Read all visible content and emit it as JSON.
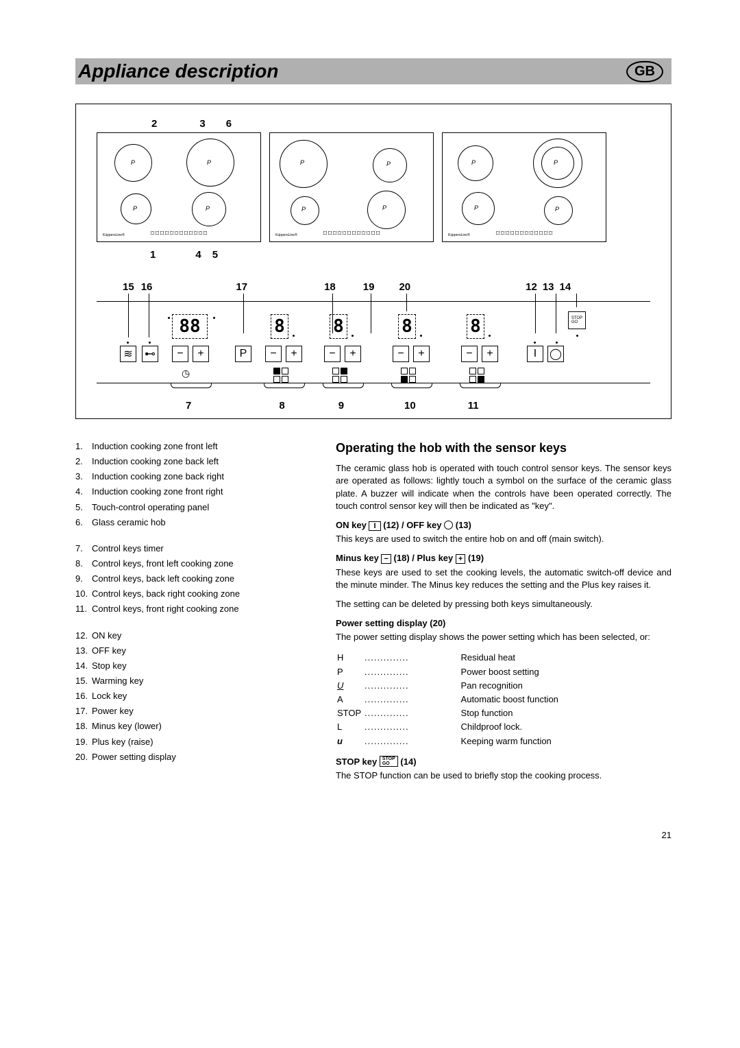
{
  "header": {
    "title": "Appliance description",
    "badge": "GB"
  },
  "top_diagram": {
    "top_labels": [
      "2",
      "3",
      "6"
    ],
    "mid_labels": [
      "1",
      "4",
      "5"
    ],
    "panel_p_marker": "P"
  },
  "ctrl_diagram": {
    "top_labels": [
      "15",
      "16",
      "17",
      "18",
      "19",
      "20",
      "12",
      "13",
      "14"
    ],
    "bot_labels": [
      "7",
      "8",
      "9",
      "10",
      "11"
    ],
    "timer_digits": "88",
    "zone_digit": "8",
    "p_key": "P",
    "stop_key": "STOP\nGO"
  },
  "legend": [
    {
      "n": "1.",
      "t": "Induction cooking zone front left"
    },
    {
      "n": "2.",
      "t": "Induction cooking zone back left"
    },
    {
      "n": "3.",
      "t": "Induction cooking zone back right"
    },
    {
      "n": "4.",
      "t": "Induction cooking zone front right"
    },
    {
      "n": "5.",
      "t": "Touch-control operating panel"
    },
    {
      "n": "6.",
      "t": "Glass ceramic hob"
    },
    {
      "gap": true
    },
    {
      "n": "7.",
      "t": "Control keys timer"
    },
    {
      "n": "8.",
      "t": "Control keys, front left cooking zone"
    },
    {
      "n": "9.",
      "t": "Control keys, back left cooking zone"
    },
    {
      "n": "10.",
      "t": "Control keys, back right cooking zone"
    },
    {
      "n": "11.",
      "t": "Control keys, front right cooking zone"
    },
    {
      "gap": true
    },
    {
      "n": "12.",
      "t": "ON key"
    },
    {
      "n": "13.",
      "t": "OFF key"
    },
    {
      "n": "14.",
      "t": "Stop key"
    },
    {
      "n": "15.",
      "t": "Warming key"
    },
    {
      "n": "16.",
      "t": "Lock key"
    },
    {
      "n": "17.",
      "t": "Power key"
    },
    {
      "n": "18.",
      "t": "Minus key (lower)"
    },
    {
      "n": "19.",
      "t": "Plus key (raise)"
    },
    {
      "n": "20.",
      "t": "Power setting display"
    }
  ],
  "right": {
    "heading": "Operating the hob with the sensor keys",
    "intro": "The ceramic glass hob is operated with touch control sensor keys. The sensor keys are operated as follows: lightly touch a symbol on the surface of the ceramic glass plate. A buzzer will indicate when the controls have been operated correctly. The touch control sensor key will then be indicated as \"key\".",
    "sub1": {
      "pre": "ON key",
      "mid": "(12) / OFF key",
      "post": "(13)"
    },
    "p1": "This keys are used to switch the entire hob on and off (main switch).",
    "sub2": {
      "pre": "Minus key",
      "mid": "(18) / Plus key",
      "post": "(19)"
    },
    "p2a": "These keys are used to set the cooking levels, the automatic switch-off device and the minute minder. The Minus key reduces the setting and the Plus key raises it.",
    "p2b": "The setting can be deleted by pressing both keys simultaneously.",
    "sub3": "Power setting display (20)",
    "p3": "The power setting display shows the power setting which has been selected, or:",
    "symbols": [
      {
        "s": "H",
        "t": "Residual heat"
      },
      {
        "s": "P",
        "t": "Power boost setting"
      },
      {
        "s": "⊔",
        "t": "Pan recognition",
        "special": "u-under"
      },
      {
        "s": "A",
        "t": "Automatic boost function"
      },
      {
        "s": "STOP",
        "t": "Stop function"
      },
      {
        "s": "L",
        "t": "Childproof lock."
      },
      {
        "s": "u",
        "t": "Keeping warm function",
        "bold": true
      }
    ],
    "sub4": "STOP key",
    "sub4_post": "(14)",
    "p4": "The STOP function can be used to briefly stop the cooking process."
  },
  "page_number": "21",
  "style": {
    "bg": "#ffffff",
    "header_bg": "#b0b0b0",
    "text": "#000000",
    "body_font_size": 14,
    "title_font_size": 28,
    "heading_font_size": 18
  }
}
